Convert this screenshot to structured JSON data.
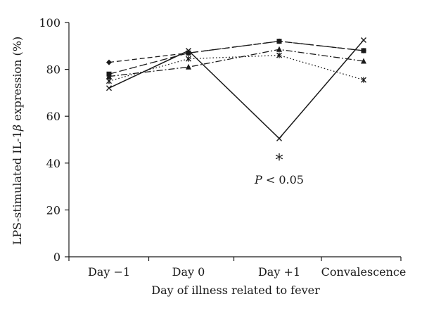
{
  "chart_data": {
    "type": "line",
    "categories": [
      "Day −1",
      "Day 0",
      "Day +1",
      "Convalescence"
    ],
    "ylabel_prefix": "LPS-stimulated IL-1",
    "ylabel_symbol": "β",
    "ylabel_suffix": " expression (%)",
    "xlabel": "Day of illness related to fever",
    "ylim": [
      0,
      100
    ],
    "yticks": [
      0,
      20,
      40,
      60,
      80,
      100
    ],
    "grid": false,
    "legend": "none",
    "series": [
      {
        "marker": "diamond",
        "dash": "dashed",
        "values": [
          83,
          87,
          92,
          88
        ]
      },
      {
        "marker": "square",
        "dash": "long-dashed",
        "values": [
          78,
          87,
          92,
          88
        ]
      },
      {
        "marker": "triangle",
        "dash": "dash-dot",
        "values": [
          77,
          81,
          88.5,
          83.5
        ]
      },
      {
        "marker": "asterisk",
        "dash": "dotted",
        "values": [
          75,
          84.5,
          86,
          75.5
        ]
      },
      {
        "marker": "cross",
        "dash": "solid",
        "values": [
          72,
          88,
          50.5,
          92.5
        ]
      }
    ],
    "annotation": {
      "category": "Day +1",
      "star": "*",
      "p_italic": "P",
      "p_rest": " < 0.05"
    }
  }
}
